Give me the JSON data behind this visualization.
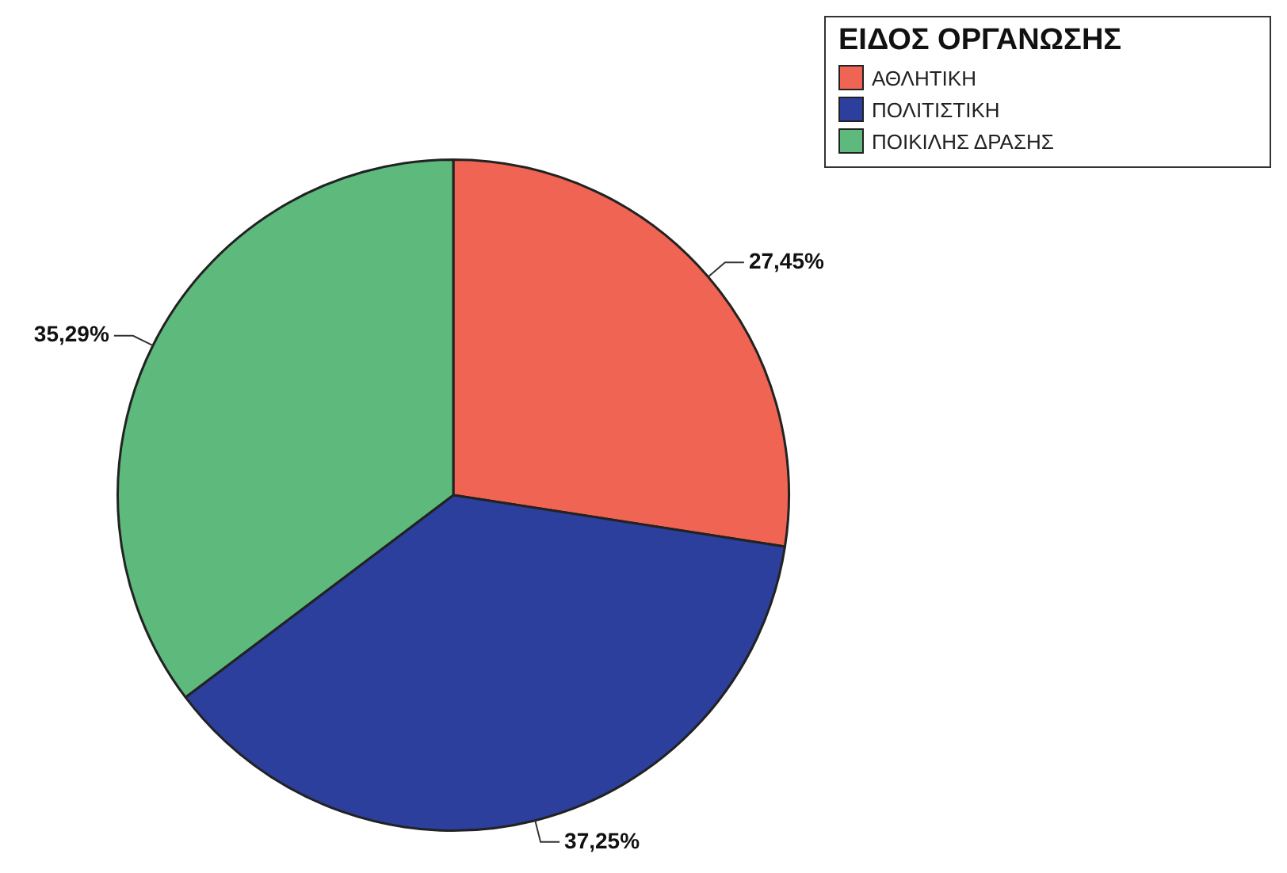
{
  "chart_data": {
    "type": "pie",
    "legend_title": "ΕΙΔΟΣ ΟΡΓΑΝΩΣΗΣ",
    "categories": [
      "ΑΘΛΗΤΙΚΗ",
      "ΠΟΛΙΤΙΣΤΙΚΗ",
      "ΠΟΙΚΙΛΗΣ ΔΡΑΣΗΣ"
    ],
    "values": [
      27.45,
      37.25,
      35.29
    ],
    "colors": [
      "#ef6452",
      "#2c3f9c",
      "#5db97c"
    ],
    "value_labels": [
      "27,45%",
      "37,25%",
      "35,29%"
    ],
    "legend": "top right"
  }
}
